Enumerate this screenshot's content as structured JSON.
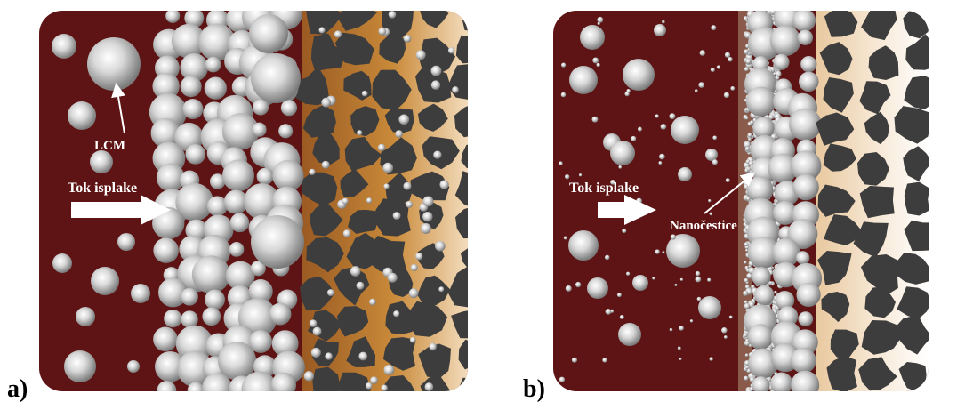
{
  "panels": [
    {
      "id": "a",
      "letter": "a)",
      "arrow_label": "Tok isplake",
      "particle_label": "LCM"
    },
    {
      "id": "b",
      "letter": "b)",
      "arrow_label": "Tok isplake",
      "particle_label": "Nanočestice"
    }
  ],
  "colors": {
    "mud": "#5e1414",
    "rock": "#3d3d3d",
    "pore_a": "#c98a3a",
    "pore_b": "#f2dcc0",
    "label": "#ffffff"
  }
}
